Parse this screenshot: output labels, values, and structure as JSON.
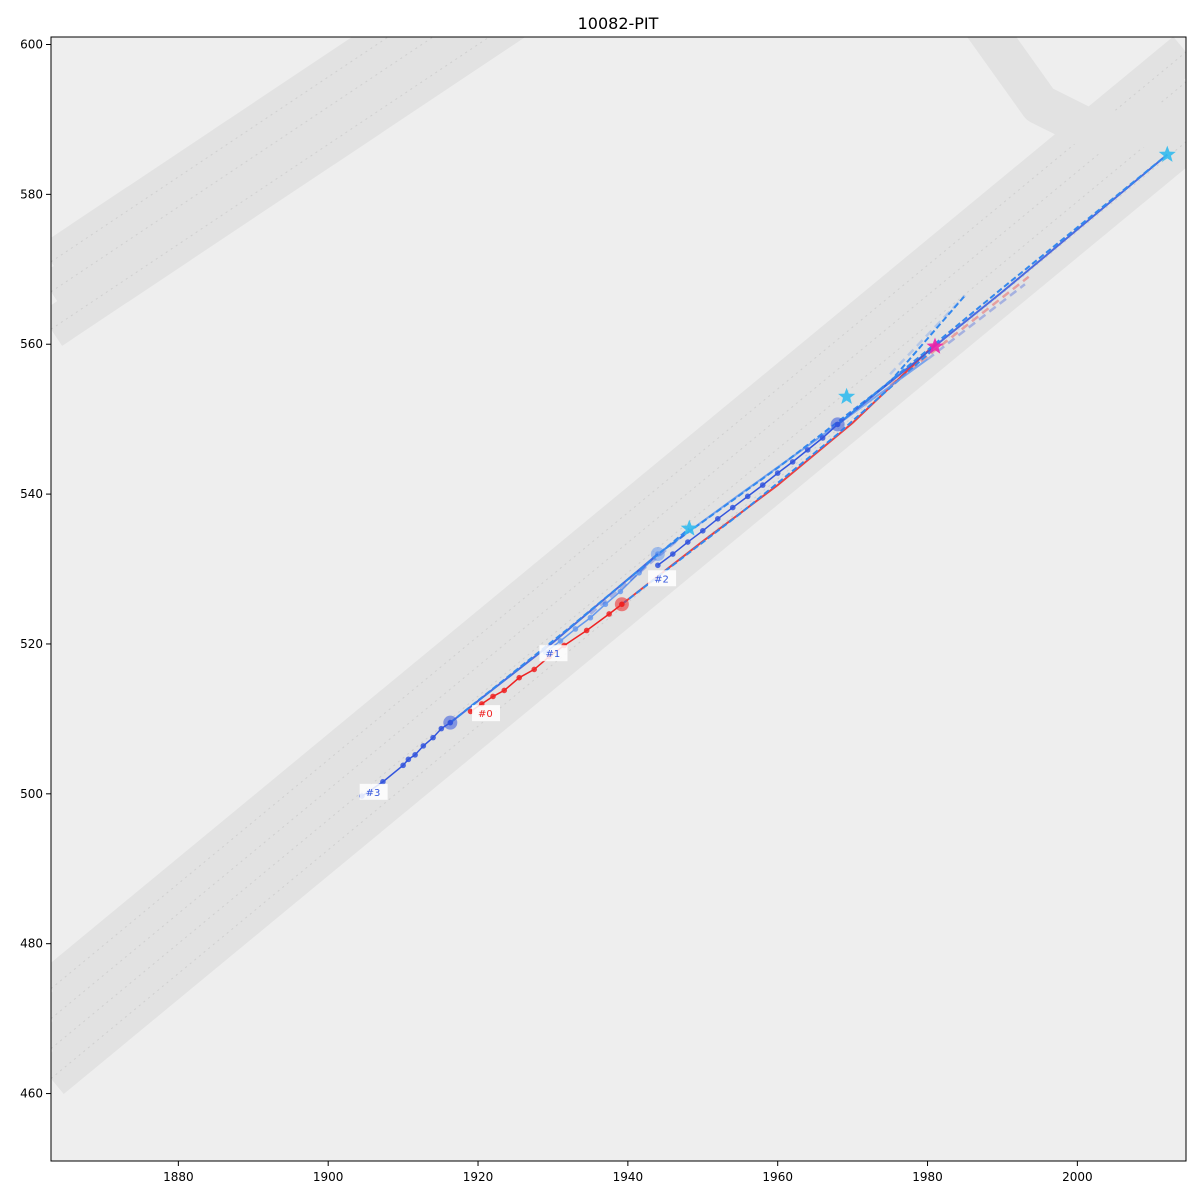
{
  "chart_data": {
    "type": "scatter",
    "title": "10082-PIT",
    "xlabel": "",
    "ylabel": "",
    "xlim": [
      1863,
      2014.5
    ],
    "ylim": [
      451,
      601
    ],
    "x_ticks": [
      1880,
      1900,
      1920,
      1940,
      1960,
      1980,
      2000
    ],
    "y_ticks": [
      460,
      480,
      500,
      520,
      540,
      560,
      580,
      600
    ],
    "grid": false,
    "colors": {
      "red": "#ee2222",
      "blue": "#3355dd",
      "lightblue": "#6699ee",
      "pred": "#3388ee",
      "star": "#33bbee",
      "magenta": "#ee22aa",
      "map_bg": "#eeeeee",
      "lane": "#e2e2e2"
    },
    "map": {
      "lanes": [
        {
          "x": [
            1863,
            2014.5
          ],
          "y": [
            462,
            587
          ]
        },
        {
          "x": [
            1863,
            2014.5
          ],
          "y": [
            466,
            591
          ]
        },
        {
          "x": [
            1863,
            2014.5
          ],
          "y": [
            470,
            595
          ]
        },
        {
          "x": [
            1863,
            2014.5
          ],
          "y": [
            474,
            599
          ]
        },
        {
          "x": [
            1863,
            1935
          ],
          "y": [
            562,
            610
          ]
        },
        {
          "x": [
            1863,
            1935
          ],
          "y": [
            567,
            615
          ]
        },
        {
          "x": [
            1863,
            1935
          ],
          "y": [
            571,
            619
          ]
        }
      ],
      "curve": {
        "x": [
          1985,
          1995,
          2003,
          2014.5
        ],
        "y": [
          606,
          592,
          588,
          590
        ]
      }
    },
    "agents": [
      {
        "label": "#0",
        "color": "red",
        "label_pos": [
          1920,
          510.5
        ],
        "history": {
          "x": [
            1919,
            1920.5,
            1922,
            1923.5,
            1925.5,
            1927.5,
            1929.5,
            1931.5,
            1934.5,
            1937.5,
            1939.2
          ],
          "y": [
            511,
            512,
            513,
            513.8,
            515.5,
            516.6,
            518.3,
            519.8,
            521.8,
            524,
            525.3
          ]
        },
        "current": [
          1939.2,
          525.3
        ],
        "gt": {
          "x": [
            1939.2,
            1950,
            1960,
            1970,
            1981
          ],
          "y": [
            525.3,
            533.7,
            541.2,
            549.5,
            560
          ]
        },
        "pred": {
          "x": [
            1939.2,
            1955,
            1968,
            1981
          ],
          "y": [
            525.3,
            537.4,
            548,
            559.5
          ]
        },
        "faded": {
          "x": [
            1975,
            1993.5
          ],
          "y": [
            554.5,
            569
          ]
        },
        "endpoint": [
          1981,
          559.7
        ]
      },
      {
        "label": "#1",
        "color": "lightblue",
        "label_pos": [
          1929,
          518.5
        ],
        "history": {
          "x": [
            1929,
            1931,
            1933,
            1935,
            1937,
            1939,
            1941.5,
            1944
          ],
          "y": [
            518.9,
            520.4,
            522,
            523.5,
            525.3,
            527,
            529.5,
            532
          ]
        },
        "current": [
          1944,
          532
        ],
        "gt": {
          "x": [
            1944,
            1955,
            1968,
            1980
          ],
          "y": [
            532,
            540,
            549.3,
            558
          ]
        },
        "pred": {
          "x": [
            1944,
            1960,
            1975,
            1985
          ],
          "y": [
            532,
            543.5,
            555,
            566.5
          ]
        },
        "faded": {
          "x": [
            1975,
            1985
          ],
          "y": [
            556,
            566.5
          ]
        },
        "endpoint": [
          1969.2,
          553
        ]
      },
      {
        "label": "#2",
        "color": "blue",
        "label_pos": [
          1943.5,
          528.5
        ],
        "history": {
          "x": [
            1944,
            1946,
            1948,
            1950,
            1952,
            1954,
            1956,
            1958,
            1960,
            1962,
            1964,
            1966,
            1968
          ],
          "y": [
            530.5,
            532,
            533.6,
            535.1,
            536.7,
            538.2,
            539.7,
            541.2,
            542.8,
            544.3,
            545.9,
            547.5,
            549.3
          ]
        },
        "current": [
          1968,
          549.3
        ],
        "gt": {
          "x": [
            1968,
            1990,
            2012
          ],
          "y": [
            549.3,
            567,
            585.3
          ]
        },
        "pred": {
          "x": [
            1968,
            1990,
            2012
          ],
          "y": [
            549.3,
            567.5,
            585.3
          ]
        },
        "faded": {
          "x": [
            1980,
            1993
          ],
          "y": [
            558,
            568
          ]
        },
        "endpoint": [
          2012,
          585.3
        ]
      },
      {
        "label": "#3",
        "color": "blue",
        "label_pos": [
          1905,
          500
        ],
        "history": {
          "x": [
            1904.5,
            1907.3,
            1910,
            1910.7,
            1911.6,
            1912.7,
            1914,
            1915.1,
            1916.3
          ],
          "y": [
            499.7,
            501.6,
            503.8,
            504.6,
            505.2,
            506.4,
            507.5,
            508.7,
            509.5
          ]
        },
        "current": [
          1916.3,
          509.5
        ],
        "gt": {
          "x": [
            1916.3,
            1930,
            1944
          ],
          "y": [
            509.5,
            520.2,
            532
          ]
        },
        "pred": {
          "x": [
            1916.3,
            1932,
            1948.2
          ],
          "y": [
            509.5,
            522,
            535.4
          ]
        },
        "faded": {
          "x": [
            1935,
            1948
          ],
          "y": [
            524,
            535
          ]
        },
        "endpoint": [
          1948.2,
          535.4
        ]
      }
    ]
  }
}
